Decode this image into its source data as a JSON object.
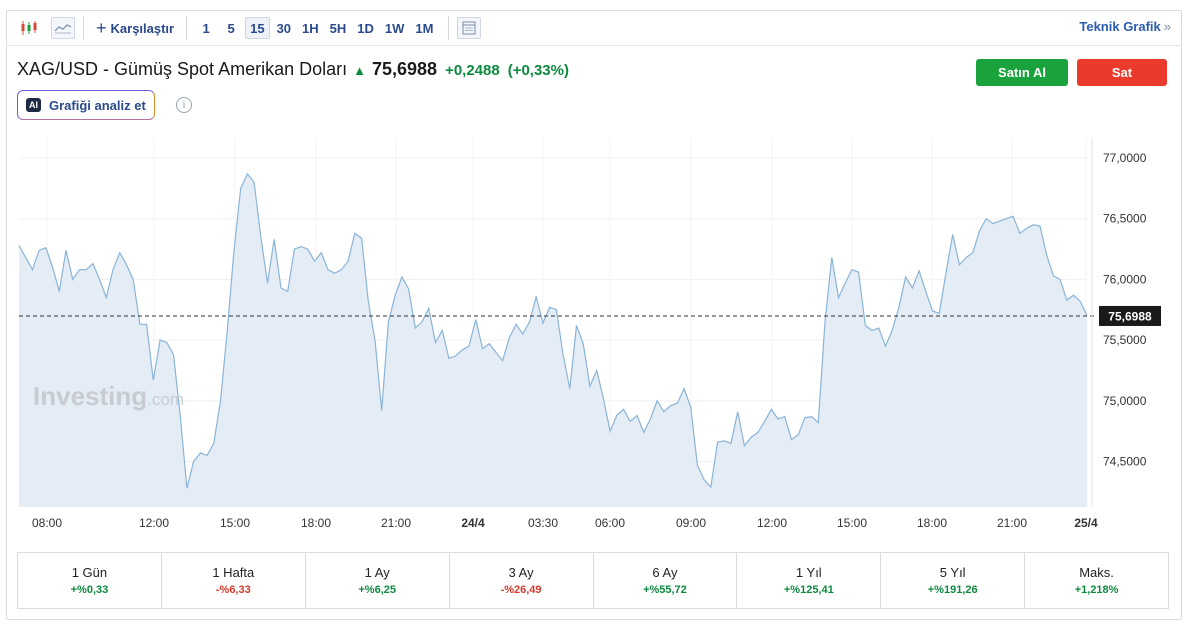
{
  "toolbar": {
    "compare_label": "Karşılaştır",
    "periods": [
      "1",
      "5",
      "15",
      "30",
      "1H",
      "5H",
      "1D",
      "1W",
      "1M"
    ],
    "active_period": "15",
    "technical_label": "Teknik Grafik",
    "technical_arrow": "»"
  },
  "header": {
    "title": "XAG/USD - Gümüş Spot Amerikan Doları",
    "price": "75,6988",
    "change": "+0,2488",
    "change_pct": "(+0,33%)",
    "buy_label": "Satın Al",
    "sell_label": "Sat",
    "analyze_badge": "AI",
    "analyze_label": "Grafiği analiz et",
    "info_icon": "i"
  },
  "colors": {
    "line": "#8ab4d8",
    "area": "#e4edf6",
    "up": "#0c8a3e",
    "down": "#d63a2b"
  },
  "watermark": {
    "brand": "Investing",
    "suffix": ".com"
  },
  "chart_data": {
    "type": "area",
    "title": "",
    "xlabel": "",
    "ylabel": "",
    "ylim": [
      74.1,
      77.1
    ],
    "yticks": [
      "77,0000",
      "76,5000",
      "76,0000",
      "75,5000",
      "75,0000",
      "74,5000"
    ],
    "ytick_values": [
      77.0,
      76.5,
      76.0,
      75.5,
      75.0,
      74.5
    ],
    "xticks": [
      "08:00",
      "12:00",
      "15:00",
      "18:00",
      "21:00",
      "24/4",
      "03:30",
      "06:00",
      "09:00",
      "12:00",
      "15:00",
      "18:00",
      "21:00",
      "25/4"
    ],
    "xtick_bold": [
      "24/4",
      "25/4"
    ],
    "last_price": 75.6988,
    "last_price_label": "75,6988",
    "series": [
      {
        "values": [
          76.28,
          76.18,
          76.08,
          76.24,
          76.26,
          76.1,
          75.9,
          76.24,
          76.0,
          76.08,
          76.08,
          76.13,
          76.0,
          75.85,
          76.08,
          76.22,
          76.12,
          76.0,
          75.63,
          75.63,
          75.17,
          75.5,
          75.48,
          75.38,
          74.88,
          74.28,
          74.5,
          74.57,
          74.55,
          74.65,
          75.0,
          75.57,
          76.23,
          76.75,
          76.87,
          76.8,
          76.35,
          75.97,
          76.33,
          75.93,
          75.9,
          76.25,
          76.27,
          76.25,
          76.15,
          76.22,
          76.08,
          76.05,
          76.08,
          76.15,
          76.38,
          76.34,
          75.82,
          75.5,
          74.92,
          75.65,
          75.87,
          76.02,
          75.92,
          75.6,
          75.65,
          75.76,
          75.48,
          75.58,
          75.35,
          75.37,
          75.42,
          75.45,
          75.67,
          75.43,
          75.47,
          75.4,
          75.33,
          75.52,
          75.63,
          75.55,
          75.65,
          75.86,
          75.64,
          75.77,
          75.75,
          75.38,
          75.1,
          75.62,
          75.47,
          75.12,
          75.25,
          75.02,
          74.75,
          74.88,
          74.93,
          74.83,
          74.88,
          74.74,
          74.85,
          75.0,
          74.91,
          74.96,
          74.98,
          75.1,
          74.95,
          74.47,
          74.35,
          74.29,
          74.66,
          74.67,
          74.65,
          74.91,
          74.63,
          74.7,
          74.74,
          74.83,
          74.93,
          74.85,
          74.87,
          74.68,
          74.72,
          74.86,
          74.87,
          74.82,
          75.65,
          76.18,
          75.85,
          75.97,
          76.08,
          76.06,
          75.62,
          75.58,
          75.6,
          75.45,
          75.58,
          75.77,
          76.02,
          75.93,
          76.07,
          75.9,
          75.74,
          75.72,
          76.05,
          76.37,
          76.12,
          76.18,
          76.22,
          76.4,
          76.5,
          76.46,
          76.48,
          76.5,
          76.52,
          76.38,
          76.42,
          76.45,
          76.44,
          76.2,
          76.03,
          76.0,
          75.83,
          75.87,
          75.82,
          75.7
        ]
      }
    ]
  },
  "performance": [
    {
      "label": "1 Gün",
      "value": "+%0,33",
      "dir": "up"
    },
    {
      "label": "1 Hafta",
      "value": "-%6,33",
      "dir": "down"
    },
    {
      "label": "1 Ay",
      "value": "+%6,25",
      "dir": "up"
    },
    {
      "label": "3 Ay",
      "value": "-%26,49",
      "dir": "down"
    },
    {
      "label": "6 Ay",
      "value": "+%55,72",
      "dir": "up"
    },
    {
      "label": "1 Yıl",
      "value": "+%125,41",
      "dir": "up"
    },
    {
      "label": "5 Yıl",
      "value": "+%191,26",
      "dir": "up"
    },
    {
      "label": "Maks.",
      "value": "+1,218%",
      "dir": "up"
    }
  ]
}
